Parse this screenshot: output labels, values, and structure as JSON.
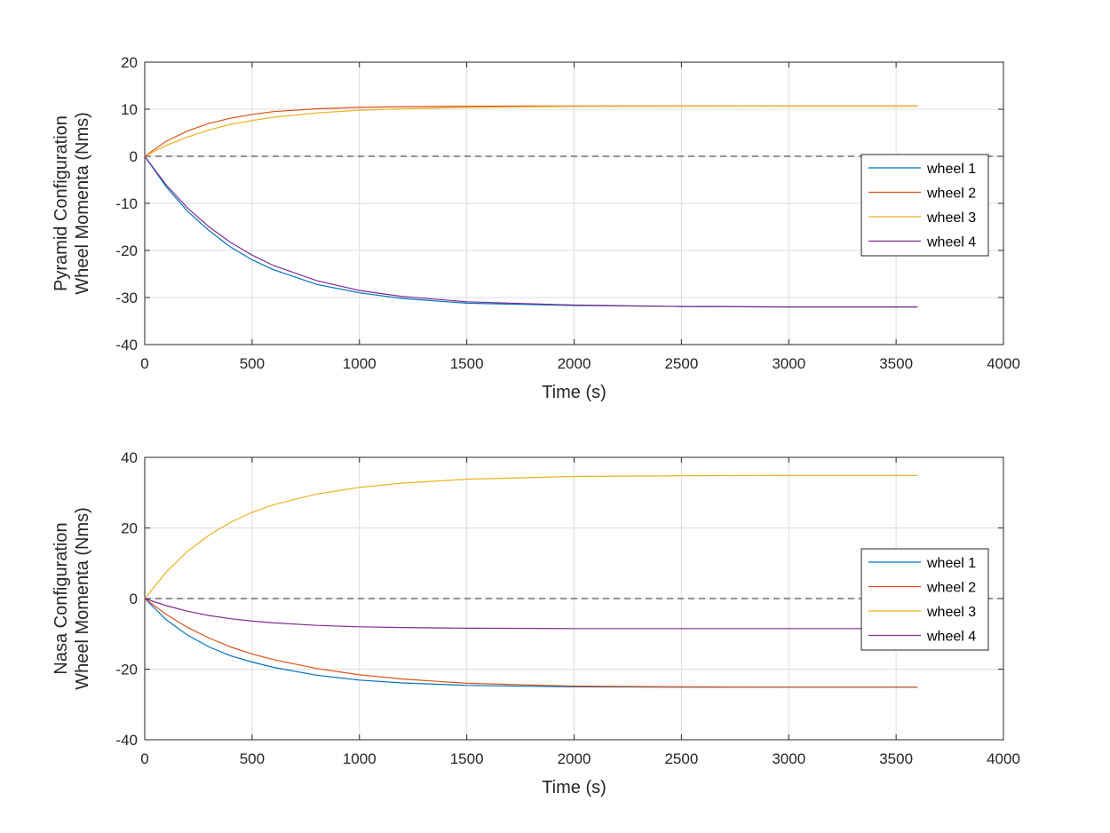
{
  "chart_data": [
    {
      "type": "line",
      "title": "",
      "xlabel": "Time (s)",
      "ylabel_lines": [
        "Pyramid Configuration",
        "Wheel Momenta (Nms)"
      ],
      "xlim": [
        0,
        4000
      ],
      "ylim": [
        -40,
        20
      ],
      "xticks": [
        0,
        500,
        1000,
        1500,
        2000,
        2500,
        3000,
        3500,
        4000
      ],
      "yticks": [
        -40,
        -30,
        -20,
        -10,
        0,
        10,
        20
      ],
      "grid": true,
      "legend_position": "right",
      "reference_line": {
        "y": 0,
        "style": "dashed"
      },
      "series": [
        {
          "name": "wheel 1",
          "color": "#0072BD",
          "x": [
            0,
            100,
            200,
            300,
            400,
            500,
            600,
            800,
            1000,
            1200,
            1500,
            2000,
            2500,
            3000,
            3600
          ],
          "y": [
            0,
            -6.5,
            -11.7,
            -15.8,
            -19.3,
            -22.0,
            -24.1,
            -27.2,
            -29.0,
            -30.2,
            -31.2,
            -31.7,
            -31.9,
            -32.0,
            -32.0
          ]
        },
        {
          "name": "wheel 2",
          "color": "#D95319",
          "x": [
            0,
            100,
            200,
            300,
            400,
            500,
            600,
            800,
            1000,
            1200,
            1500,
            2000,
            2500,
            3000,
            3600
          ],
          "y": [
            0,
            3.2,
            5.4,
            7.0,
            8.1,
            8.9,
            9.5,
            10.1,
            10.4,
            10.55,
            10.65,
            10.7,
            10.7,
            10.7,
            10.7
          ]
        },
        {
          "name": "wheel 3",
          "color": "#EDB120",
          "x": [
            0,
            100,
            200,
            300,
            400,
            500,
            600,
            800,
            1000,
            1200,
            1500,
            2000,
            2500,
            3000,
            3600
          ],
          "y": [
            0,
            2.3,
            4.1,
            5.6,
            6.8,
            7.6,
            8.3,
            9.2,
            9.8,
            10.1,
            10.4,
            10.6,
            10.65,
            10.7,
            10.7
          ]
        },
        {
          "name": "wheel 4",
          "color": "#7E2F8E",
          "x": [
            0,
            100,
            200,
            300,
            400,
            500,
            600,
            800,
            1000,
            1200,
            1500,
            2000,
            2500,
            3000,
            3600
          ],
          "y": [
            0,
            -6.1,
            -11.0,
            -15.0,
            -18.3,
            -21.0,
            -23.2,
            -26.4,
            -28.5,
            -29.8,
            -30.9,
            -31.6,
            -31.9,
            -32.0,
            -32.0
          ]
        }
      ]
    },
    {
      "type": "line",
      "title": "",
      "xlabel": "Time (s)",
      "ylabel_lines": [
        "Nasa Configuration",
        "Wheel Momenta (Nms)"
      ],
      "xlim": [
        0,
        4000
      ],
      "ylim": [
        -40,
        40
      ],
      "xticks": [
        0,
        500,
        1000,
        1500,
        2000,
        2500,
        3000,
        3500,
        4000
      ],
      "yticks": [
        -40,
        -20,
        0,
        20,
        40
      ],
      "grid": true,
      "legend_position": "right",
      "reference_line": {
        "y": 0,
        "style": "dashed"
      },
      "series": [
        {
          "name": "wheel 1",
          "color": "#0072BD",
          "x": [
            0,
            100,
            200,
            300,
            400,
            500,
            600,
            800,
            1000,
            1200,
            1500,
            2000,
            2500,
            3000,
            3600
          ],
          "y": [
            0,
            -6.0,
            -10.4,
            -13.7,
            -16.2,
            -18.0,
            -19.5,
            -21.7,
            -23.1,
            -23.9,
            -24.6,
            -25.0,
            -25.1,
            -25.1,
            -25.1
          ]
        },
        {
          "name": "wheel 2",
          "color": "#D95319",
          "x": [
            0,
            100,
            200,
            300,
            400,
            500,
            600,
            800,
            1000,
            1200,
            1500,
            2000,
            2500,
            3000,
            3600
          ],
          "y": [
            0,
            -4.5,
            -8.2,
            -11.2,
            -13.7,
            -15.7,
            -17.3,
            -19.8,
            -21.6,
            -22.8,
            -24.0,
            -24.8,
            -25.0,
            -25.1,
            -25.1
          ]
        },
        {
          "name": "wheel 3",
          "color": "#EDB120",
          "x": [
            0,
            100,
            200,
            300,
            400,
            500,
            600,
            800,
            1000,
            1200,
            1500,
            2000,
            2500,
            3000,
            3600
          ],
          "y": [
            0,
            7.5,
            13.4,
            18.0,
            21.6,
            24.4,
            26.6,
            29.6,
            31.5,
            32.7,
            33.8,
            34.6,
            34.8,
            34.9,
            34.9
          ]
        },
        {
          "name": "wheel 4",
          "color": "#7E2F8E",
          "x": [
            0,
            100,
            200,
            300,
            400,
            500,
            600,
            800,
            1000,
            1200,
            1500,
            2000,
            2500,
            3000,
            3600
          ],
          "y": [
            0,
            -2.0,
            -3.6,
            -4.8,
            -5.7,
            -6.4,
            -6.9,
            -7.6,
            -8.0,
            -8.2,
            -8.4,
            -8.5,
            -8.5,
            -8.5,
            -8.5
          ]
        }
      ]
    }
  ]
}
